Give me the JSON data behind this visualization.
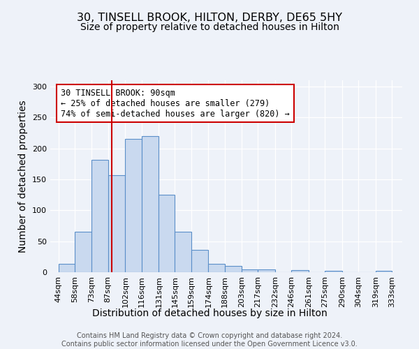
{
  "title": "30, TINSELL BROOK, HILTON, DERBY, DE65 5HY",
  "subtitle": "Size of property relative to detached houses in Hilton",
  "xlabel": "Distribution of detached houses by size in Hilton",
  "ylabel": "Number of detached properties",
  "bar_labels": [
    "44sqm",
    "58sqm",
    "73sqm",
    "87sqm",
    "102sqm",
    "116sqm",
    "131sqm",
    "145sqm",
    "159sqm",
    "174sqm",
    "188sqm",
    "203sqm",
    "217sqm",
    "232sqm",
    "246sqm",
    "261sqm",
    "275sqm",
    "290sqm",
    "304sqm",
    "319sqm",
    "333sqm"
  ],
  "bar_heights": [
    13,
    65,
    181,
    157,
    215,
    220,
    125,
    65,
    36,
    14,
    10,
    5,
    4,
    0,
    3,
    0,
    2,
    0,
    0,
    2,
    0
  ],
  "bar_edges": [
    44,
    58,
    73,
    87,
    102,
    116,
    131,
    145,
    159,
    174,
    188,
    203,
    217,
    232,
    246,
    261,
    275,
    290,
    304,
    319,
    333
  ],
  "bar_color": "#c9d9ef",
  "bar_edge_color": "#5b8fc9",
  "vline_x": 90,
  "vline_color": "#cc0000",
  "annotation_text": "30 TINSELL BROOK: 90sqm\n← 25% of detached houses are smaller (279)\n74% of semi-detached houses are larger (820) →",
  "annotation_box_color": "#ffffff",
  "annotation_box_edge": "#cc0000",
  "ylim": [
    0,
    310
  ],
  "footer1": "Contains HM Land Registry data © Crown copyright and database right 2024.",
  "footer2": "Contains public sector information licensed under the Open Government Licence v3.0.",
  "background_color": "#eef2f9",
  "plot_bg_color": "#eef2f9",
  "title_fontsize": 11.5,
  "subtitle_fontsize": 10,
  "axis_fontsize": 10,
  "tick_fontsize": 8,
  "footer_fontsize": 7,
  "grid_color": "#ffffff",
  "annotation_fontsize": 8.5
}
